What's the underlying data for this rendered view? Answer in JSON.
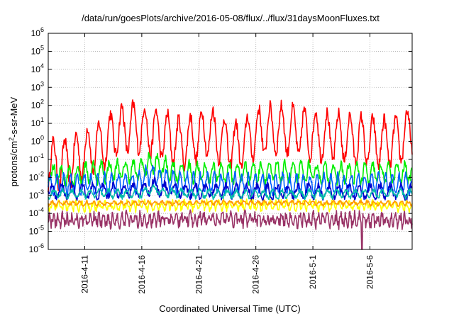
{
  "chart_data": {
    "type": "line",
    "title": "/data/run/goesPlots/archive/2016-05-08/flux/../flux/31daysMoonFluxes.txt",
    "xlabel": "Coordinated Universal Time (UTC)",
    "ylabel_parts": [
      "protons/cm",
      "2",
      "-s-sr-MeV"
    ],
    "y_scale": "log",
    "ylim": [
      -6,
      6
    ],
    "yticks": [
      {
        "base": "10",
        "exp": "-6",
        "value": -6
      },
      {
        "base": "10",
        "exp": "-5",
        "value": -5
      },
      {
        "base": "10",
        "exp": "-4",
        "value": -4
      },
      {
        "base": "10",
        "exp": "-3",
        "value": -3
      },
      {
        "base": "10",
        "exp": "-2",
        "value": -2
      },
      {
        "base": "10",
        "exp": "-1",
        "value": -1
      },
      {
        "base": "10",
        "exp": "0",
        "value": 0
      },
      {
        "base": "10",
        "exp": "1",
        "value": 1
      },
      {
        "base": "10",
        "exp": "2",
        "value": 2
      },
      {
        "base": "10",
        "exp": "3",
        "value": 3
      },
      {
        "base": "10",
        "exp": "4",
        "value": 4
      },
      {
        "base": "10",
        "exp": "5",
        "value": 5
      },
      {
        "base": "10",
        "exp": "6",
        "value": 6
      }
    ],
    "xlim_days": [
      -3.2,
      28.7
    ],
    "xticks": [
      {
        "label": "2016-4-11",
        "day": 0
      },
      {
        "label": "2016-4-16",
        "day": 5
      },
      {
        "label": "2016-4-21",
        "day": 10
      },
      {
        "label": "2016-4-26",
        "day": 15
      },
      {
        "label": "2016-5-1",
        "day": 20
      },
      {
        "label": "2016-5-6",
        "day": 25
      }
    ],
    "grid": true,
    "series": [
      {
        "color": "#ff0000",
        "amp": 1.3,
        "period": 1.0,
        "noise": 0.35,
        "profile": [
          [
            -3.2,
            -1.3
          ],
          [
            -1.5,
            -1.2
          ],
          [
            0,
            -0.6
          ],
          [
            1.5,
            -0.2
          ],
          [
            2.8,
            0.6
          ],
          [
            4.5,
            0.8
          ],
          [
            6,
            0.5
          ],
          [
            7.5,
            0.2
          ],
          [
            8.5,
            -0.1
          ],
          [
            9.5,
            0.2
          ],
          [
            11,
            0.6
          ],
          [
            12,
            0.1
          ],
          [
            13.5,
            -0.3
          ],
          [
            15,
            0.5
          ],
          [
            17,
            0.7
          ],
          [
            19,
            0.5
          ],
          [
            21,
            0.3
          ],
          [
            23,
            0.2
          ],
          [
            25,
            0.0
          ],
          [
            27,
            -0.1
          ],
          [
            28.7,
            0.6
          ]
        ]
      },
      {
        "color": "#00ee00",
        "amp": 0.5,
        "period": 0.7,
        "noise": 0.25,
        "profile": [
          [
            -3.2,
            -1.8
          ],
          [
            -1.5,
            -1.9
          ],
          [
            1,
            -1.7
          ],
          [
            3,
            -1.6
          ],
          [
            4.5,
            -1.65
          ],
          [
            5.8,
            -1.2
          ],
          [
            6.6,
            -1.4
          ],
          [
            8,
            -1.7
          ],
          [
            12,
            -1.75
          ],
          [
            16,
            -1.7
          ],
          [
            20,
            -1.75
          ],
          [
            24,
            -1.8
          ],
          [
            28.7,
            -1.75
          ]
        ]
      },
      {
        "color": "#0060ff",
        "amp": 0.5,
        "period": 0.6,
        "noise": 0.2,
        "profile": [
          [
            -3.2,
            -2.4
          ],
          [
            1,
            -2.35
          ],
          [
            4.5,
            -2.3
          ],
          [
            5.8,
            -1.8
          ],
          [
            6.6,
            -2.0
          ],
          [
            8,
            -2.3
          ],
          [
            14,
            -2.35
          ],
          [
            20,
            -2.4
          ],
          [
            28.7,
            -2.35
          ]
        ]
      },
      {
        "color": "#0000cc",
        "amp": 0.35,
        "period": 0.9,
        "noise": 0.2,
        "profile": [
          [
            -3.2,
            -2.8
          ],
          [
            2,
            -2.75
          ],
          [
            5,
            -2.7
          ],
          [
            6,
            -2.45
          ],
          [
            7,
            -2.7
          ],
          [
            14,
            -2.8
          ],
          [
            20,
            -2.8
          ],
          [
            28.7,
            -2.8
          ]
        ]
      },
      {
        "color": "#00bbaa",
        "amp": 0.2,
        "period": 0.8,
        "noise": 0.12,
        "profile": [
          [
            -3.2,
            -2.9
          ],
          [
            5,
            -2.9
          ],
          [
            6,
            -2.6
          ],
          [
            7,
            -2.85
          ],
          [
            14,
            -2.95
          ],
          [
            20,
            -2.9
          ],
          [
            28.7,
            -2.9
          ]
        ]
      },
      {
        "color": "#ffff00",
        "amp": 0.2,
        "period": 0.5,
        "noise": 0.18,
        "profile": [
          [
            -3.2,
            -3.6
          ],
          [
            10,
            -3.55
          ],
          [
            20,
            -3.55
          ],
          [
            28.7,
            -3.6
          ]
        ]
      },
      {
        "color": "#ff9900",
        "amp": 0.1,
        "period": 0.6,
        "noise": 0.08,
        "profile": [
          [
            -3.2,
            -3.45
          ],
          [
            14,
            -3.4
          ],
          [
            28.7,
            -3.45
          ]
        ]
      },
      {
        "color": "#993366",
        "amp": 0.25,
        "period": 0.4,
        "noise": 0.3,
        "profile": [
          [
            -3.2,
            -4.4
          ],
          [
            10,
            -4.3
          ],
          [
            20,
            -4.35
          ],
          [
            28.7,
            -4.4
          ]
        ],
        "dip": {
          "day": 24.3,
          "value": -6.0
        }
      }
    ]
  }
}
